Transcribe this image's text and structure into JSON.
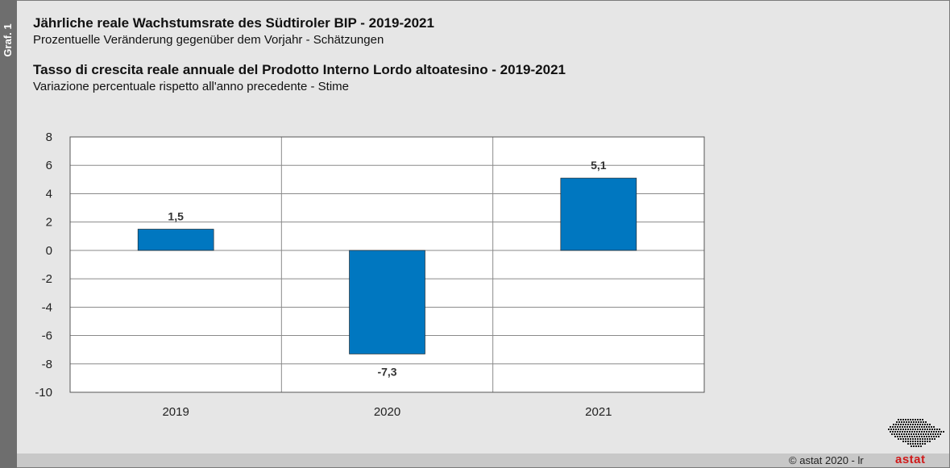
{
  "side_label": "Graf. 1",
  "header": {
    "title_de": "Jährliche reale Wachstumsrate des Südtiroler BIP - 2019-2021",
    "subtitle_de": "Prozentuelle Veränderung gegenüber dem Vorjahr - Schätzungen",
    "title_it": "Tasso di crescita reale annuale del Prodotto Interno Lordo altoatesino - 2019-2021",
    "subtitle_it": "Variazione percentuale rispetto all'anno precedente - Stime"
  },
  "footer": {
    "copyright": "astat 2020 - lr",
    "copyright_symbol": "©",
    "logo_text": "astat"
  },
  "colors": {
    "bar": "#0077c0",
    "background": "#e6e6e6",
    "plot_background": "#ffffff",
    "logo_red": "#d01a1a"
  },
  "chart_data": {
    "type": "bar",
    "categories": [
      "2019",
      "2020",
      "2021"
    ],
    "values": [
      1.5,
      -7.3,
      5.1
    ],
    "value_labels": [
      "1,5",
      "-7,3",
      "5,1"
    ],
    "ylim": [
      -10,
      8
    ],
    "yticks": [
      8,
      6,
      4,
      2,
      0,
      -2,
      -4,
      -6,
      -8,
      -10
    ],
    "grid": true,
    "legend": "none"
  }
}
